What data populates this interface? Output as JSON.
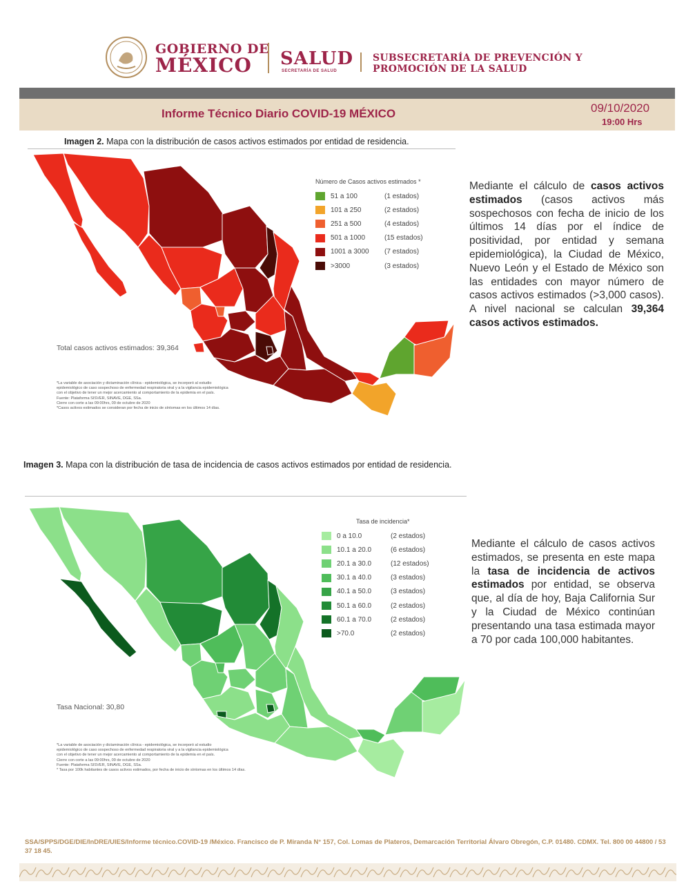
{
  "header": {
    "gobierno_line1": "GOBIERNO DE",
    "gobierno_line2": "MÉXICO",
    "salud": "SALUD",
    "salud_sub": "SECRETARÍA DE SALUD",
    "subsecretaria_line1": "SUBSECRETARÍA DE PREVENCIÓN Y",
    "subsecretaria_line2": "PROMOCIÓN DE LA SALUD"
  },
  "banner": {
    "title": "Informe Técnico Diario COVID-19 MÉXICO",
    "date": "09/10/2020",
    "time": "19:00 Hrs"
  },
  "image2": {
    "caption_bold": "Imagen 2.",
    "caption_text": " Mapa con la distribución de casos activos estimados por entidad de residencia.",
    "legend_title": "Número de Casos activos estimados *",
    "legend": [
      {
        "range": "51 a  100",
        "count": "(1 estados)",
        "color": "#5fa52f"
      },
      {
        "range": "101 a  250",
        "count": "(2 estados)",
        "color": "#f2a42a"
      },
      {
        "range": "251 a  500",
        "count": "(4 estados)",
        "color": "#ef5f2f"
      },
      {
        "range": "501 a 1000",
        "count": "(15 estados)",
        "color": "#ea2b1c"
      },
      {
        "range": "1001 a 3000",
        "count": "(7 estados)",
        "color": "#8e0f0f"
      },
      {
        "range": ">3000",
        "count": "(3 estados)",
        "color": "#4a0b06"
      }
    ],
    "total": "Total casos activos estimados: 39,364",
    "notes": [
      "*La variable de asociación y dictaminación clínica - epidemiológica, se incorporó al estudio",
      "epidemiológico de caso sospechoso de enfermedad respiratoria viral y a la vigilancia epidemiológica",
      "con el objetivo de tener un mejor acercamiento al comportamiento de la epidemia en el país.",
      "Fuente: Plataforma SISVER, SINAVE, DGE, SSa.",
      "Cierre con corte a las 09:00hrs, 09 de octubre de 2020",
      "*Casos activos estimados se consideran por fecha de inicio de síntomas en los últimos 14 días."
    ],
    "para": {
      "t1": "Mediante el cálculo de ",
      "b1": "casos activos estimados",
      "t2": " (casos activos más sospechosos con fecha de inicio de los últimos 14 días por el índice de positividad, por entidad y semana epidemiológica), la Ciudad de México, Nuevo León y el Estado de México son las entidades con mayor número de casos activos estimados (>3,000 casos). A nivel nacional se calculan ",
      "b2": "39,364 casos activos estimados."
    }
  },
  "image3": {
    "caption_bold": "Imagen 3.",
    "caption_text": " Mapa con la distribución de tasa de incidencia de casos activos estimados por entidad de residencia.",
    "legend_title": "Tasa de incidencia*",
    "legend": [
      {
        "range": "0  a  10.0",
        "count": "(2 estados)",
        "color": "#a6eca0"
      },
      {
        "range": "10.1 a  20.0",
        "count": "(6 estados)",
        "color": "#8ce08a"
      },
      {
        "range": "20.1 a  30.0",
        "count": "(12 estados)",
        "color": "#6fd174"
      },
      {
        "range": "30.1 a  40.0",
        "count": "(3 estados)",
        "color": "#4fbd5a"
      },
      {
        "range": "40.1 a  50.0",
        "count": "(3 estados)",
        "color": "#36a447"
      },
      {
        "range": "50.1 a  60.0",
        "count": "(2 estados)",
        "color": "#228b37"
      },
      {
        "range": "60.1 a  70.0",
        "count": "(2 estados)",
        "color": "#147228"
      },
      {
        "range": ">70.0",
        "count": "(2 estados)",
        "color": "#0b5a1d"
      }
    ],
    "total": "Tasa Nacional: 30,80",
    "notes": [
      "*La variable de asociación y dictaminación clínica - epidemiológica, se incorporó al estudio",
      "epidemiológico de caso sospechoso de enfermedad respiratoria viral y a la vigilancia epidemiológica",
      "con el objetivo de tener un mejor acercamiento al comportamiento de la epidemia en el país.",
      "Cierre con corte a las 09:00hrs, 09 de octubre de 2020",
      "Fuente: Plataforma SISVER, SINAVE, DGE, SSa.",
      "* Tasa por 100k habitantes de casos activos estimados, por fecha de inicio de síntomas en los últimos 14 días."
    ],
    "para": {
      "t1": "Mediante el cálculo de casos activos estimados, se presenta en este mapa la ",
      "b1": "tasa de incidencia de activos estimados",
      "t2": " por entidad, se observa que, al día de hoy, Baja California Sur y la Ciudad de México continúan presentando una tasa estimada mayor a 70 por cada 100,000 habitantes."
    }
  },
  "footer": {
    "text": "SSA/SPPS/DGE/DIE/InDRE/UIES/Informe técnico.COVID-19 /México. Francisco de P. Miranda N° 157, Col. Lomas de Plateros, Demarcación Territorial Álvaro Obregón, C.P. 01480. CDMX. Tel. 800 00 44800 / 53 37 18 45."
  },
  "colors": {
    "brand": "#9d2449",
    "gold": "#b38e5d",
    "banner_bg": "#e9dbc5"
  }
}
